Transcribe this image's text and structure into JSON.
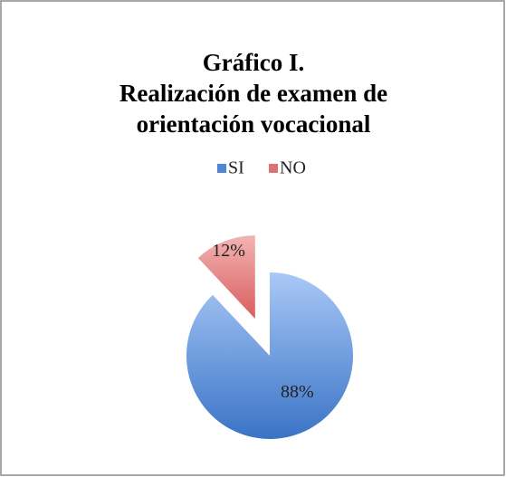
{
  "chart_data": {
    "type": "pie",
    "title": [
      "Gráfico I.",
      "Realización de examen de",
      "orientación vocacional"
    ],
    "categories": [
      "SI",
      "NO"
    ],
    "values": [
      88,
      12
    ],
    "value_labels": [
      "88%",
      "12%"
    ],
    "colors": [
      "#4f86d6",
      "#e07070"
    ],
    "legend": "top"
  }
}
